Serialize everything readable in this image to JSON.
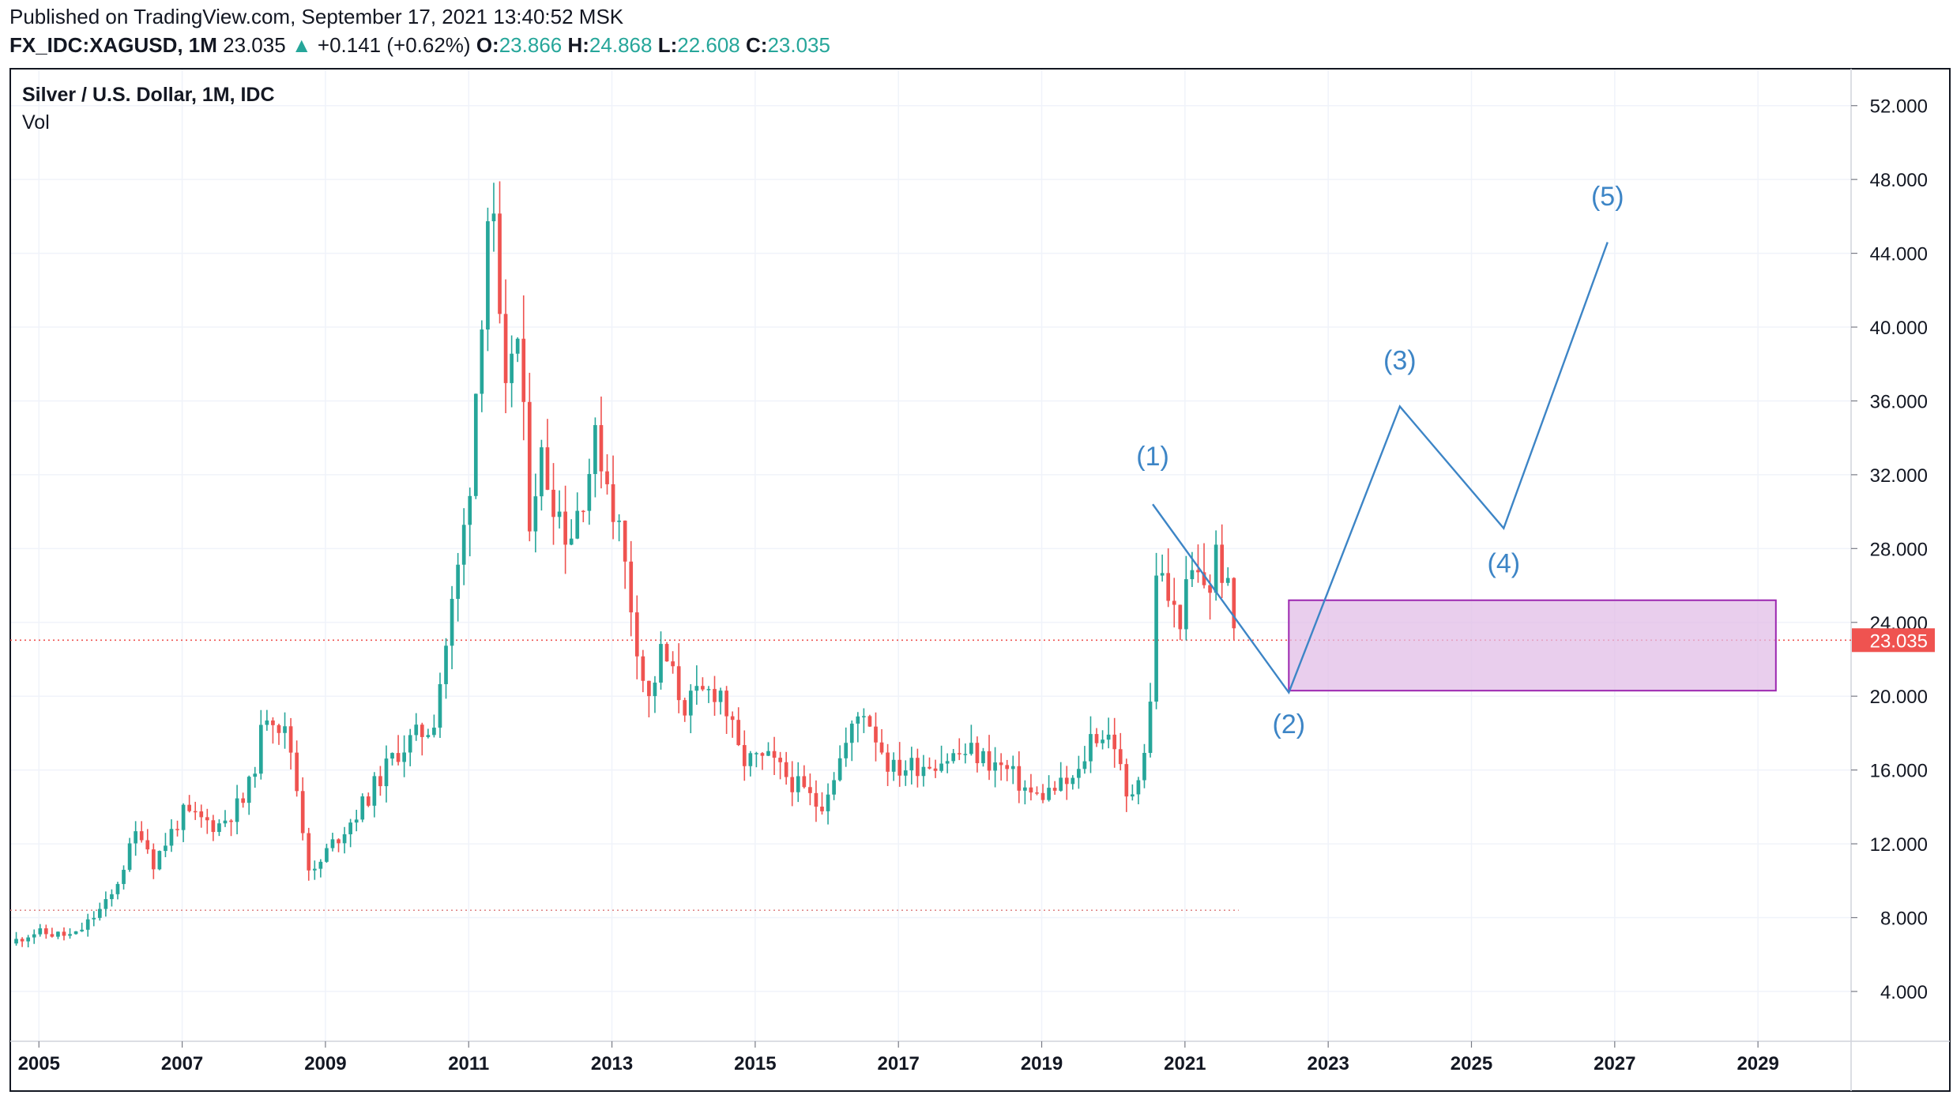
{
  "header": {
    "published": "Published on TradingView.com, September 17, 2021 13:40:52 MSK",
    "symbol": "FX_IDC:XAGUSD, 1M",
    "last": "23.035",
    "change_arrow": "▲",
    "change": "+0.141 (+0.62%)",
    "o_label": "O:",
    "o_value": "23.866",
    "h_label": "H:",
    "h_value": "24.868",
    "l_label": "L:",
    "l_value": "22.608",
    "c_label": "C:",
    "c_value": "23.035"
  },
  "legend": {
    "title": "Silver / U.S. Dollar, 1M, IDC",
    "volume": "Vol"
  },
  "colors": {
    "up": "#26a69a",
    "down": "#ef5350",
    "wave": "#3d85c6",
    "zone_fill": "#e1bee7",
    "zone_border": "#9c27b0",
    "grid": "#f0f3fa",
    "price_badge": "#ef5350"
  },
  "chart_data": {
    "type": "candlestick",
    "title": "Silver / U.S. Dollar, 1M, IDC",
    "x_ticks": [
      "2005",
      "2007",
      "2009",
      "2011",
      "2013",
      "2015",
      "2017",
      "2019",
      "2021",
      "2023",
      "2025",
      "2027",
      "2029"
    ],
    "y_ticks": [
      "4.000",
      "8.000",
      "12.000",
      "16.000",
      "20.000",
      "24.000",
      "28.000",
      "32.000",
      "36.000",
      "40.000",
      "44.000",
      "48.000",
      "52.000"
    ],
    "ylim": [
      1.3,
      54.0
    ],
    "xlim": [
      2004.6,
      2030.3
    ],
    "grid": true,
    "last_price": {
      "value": 23.035,
      "label": "23.035"
    },
    "support_line": 8.4,
    "anchors": [
      {
        "t": 2004.6,
        "c": 6.6
      },
      {
        "t": 2004.9,
        "c": 7.2
      },
      {
        "t": 2005.5,
        "c": 7.0
      },
      {
        "t": 2006.0,
        "c": 9.0
      },
      {
        "t": 2006.4,
        "c": 13.0
      },
      {
        "t": 2006.6,
        "c": 11.0
      },
      {
        "t": 2007.0,
        "c": 13.6
      },
      {
        "t": 2007.5,
        "c": 13.0
      },
      {
        "t": 2007.9,
        "c": 14.5
      },
      {
        "t": 2008.2,
        "c": 19.5
      },
      {
        "t": 2008.5,
        "c": 17.5
      },
      {
        "t": 2008.8,
        "c": 10.0
      },
      {
        "t": 2009.0,
        "c": 11.5
      },
      {
        "t": 2009.5,
        "c": 14.0
      },
      {
        "t": 2010.0,
        "c": 17.0
      },
      {
        "t": 2010.5,
        "c": 18.5
      },
      {
        "t": 2010.9,
        "c": 28.0
      },
      {
        "t": 2011.0,
        "c": 31.0
      },
      {
        "t": 2011.3,
        "c": 48.0
      },
      {
        "t": 2011.5,
        "c": 35.0
      },
      {
        "t": 2011.65,
        "c": 41.0
      },
      {
        "t": 2011.85,
        "c": 30.0
      },
      {
        "t": 2012.0,
        "c": 33.0
      },
      {
        "t": 2012.4,
        "c": 28.5
      },
      {
        "t": 2012.8,
        "c": 34.0
      },
      {
        "t": 2013.1,
        "c": 29.0
      },
      {
        "t": 2013.35,
        "c": 23.0
      },
      {
        "t": 2013.5,
        "c": 19.5
      },
      {
        "t": 2013.7,
        "c": 22.5
      },
      {
        "t": 2014.0,
        "c": 19.5
      },
      {
        "t": 2014.5,
        "c": 20.5
      },
      {
        "t": 2014.8,
        "c": 16.5
      },
      {
        "t": 2015.2,
        "c": 16.5
      },
      {
        "t": 2015.9,
        "c": 14.0
      },
      {
        "t": 2016.5,
        "c": 19.5
      },
      {
        "t": 2016.9,
        "c": 16.0
      },
      {
        "t": 2017.5,
        "c": 16.5
      },
      {
        "t": 2018.0,
        "c": 17.0
      },
      {
        "t": 2018.5,
        "c": 16.0
      },
      {
        "t": 2018.9,
        "c": 14.5
      },
      {
        "t": 2019.5,
        "c": 15.5
      },
      {
        "t": 2019.7,
        "c": 18.0
      },
      {
        "t": 2020.0,
        "c": 17.8
      },
      {
        "t": 2020.2,
        "c": 14.0
      },
      {
        "t": 2020.5,
        "c": 18.0
      },
      {
        "t": 2020.6,
        "c": 27.0
      },
      {
        "t": 2020.9,
        "c": 24.0
      },
      {
        "t": 2021.1,
        "c": 26.5
      },
      {
        "t": 2021.35,
        "c": 26.0
      },
      {
        "t": 2021.45,
        "c": 28.0
      },
      {
        "t": 2021.6,
        "c": 25.5
      },
      {
        "t": 2021.71,
        "c": 23.0
      }
    ],
    "wave_path": [
      {
        "t": 2020.55,
        "v": 30.4
      },
      {
        "t": 2022.45,
        "v": 20.2
      },
      {
        "t": 2024.0,
        "v": 35.7
      },
      {
        "t": 2025.45,
        "v": 29.1
      },
      {
        "t": 2026.9,
        "v": 44.6
      }
    ],
    "wave_labels": [
      {
        "text": "(1)",
        "t": 2020.55,
        "v": 32.5
      },
      {
        "text": "(2)",
        "t": 2022.45,
        "v": 18.0
      },
      {
        "text": "(3)",
        "t": 2024.0,
        "v": 37.7
      },
      {
        "text": "(4)",
        "t": 2025.45,
        "v": 26.7
      },
      {
        "text": "(5)",
        "t": 2026.9,
        "v": 46.6
      }
    ],
    "target_zone": {
      "t0": 2022.45,
      "t1": 2029.25,
      "v_low": 20.3,
      "v_high": 25.2
    }
  }
}
